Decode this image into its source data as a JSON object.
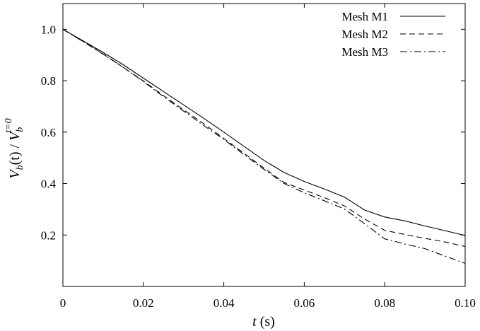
{
  "chart_data": {
    "type": "line",
    "title": "",
    "xlabel": {
      "italic": "t",
      "rest": " (s)"
    },
    "ylabel": {
      "base": "V",
      "sub": "b",
      "mid": "(t) / ",
      "base2": "V",
      "sub2": "b",
      "sup2": "t=0"
    },
    "xlim": [
      0,
      0.1
    ],
    "ylim": [
      0,
      1.1
    ],
    "x_ticks": [
      0,
      0.02,
      0.04,
      0.06,
      0.08,
      0.1
    ],
    "x_tick_labels": [
      "0",
      "0.02",
      "0.04",
      "0.06",
      "0.08",
      "0.10"
    ],
    "y_ticks": [
      0.2,
      0.4,
      0.6,
      0.8,
      1.0
    ],
    "y_tick_labels": [
      "0.2",
      "0.4",
      "0.6",
      "0.8",
      "1.0"
    ],
    "grid": false,
    "legend_position": "top-right",
    "series": [
      {
        "name": "Mesh M1",
        "dash": "solid",
        "x": [
          0,
          0.005,
          0.01,
          0.015,
          0.02,
          0.025,
          0.03,
          0.035,
          0.04,
          0.045,
          0.05,
          0.055,
          0.06,
          0.065,
          0.07,
          0.075,
          0.08,
          0.085,
          0.09,
          0.095,
          0.1
        ],
        "y": [
          1.0,
          0.955,
          0.91,
          0.862,
          0.81,
          0.758,
          0.706,
          0.654,
          0.6,
          0.545,
          0.49,
          0.443,
          0.408,
          0.379,
          0.347,
          0.297,
          0.27,
          0.255,
          0.235,
          0.217,
          0.198
        ]
      },
      {
        "name": "Mesh M2",
        "dash": "dashed",
        "x": [
          0,
          0.005,
          0.01,
          0.015,
          0.02,
          0.025,
          0.03,
          0.035,
          0.04,
          0.045,
          0.05,
          0.055,
          0.06,
          0.065,
          0.07,
          0.075,
          0.08,
          0.085,
          0.09,
          0.095,
          0.1
        ],
        "y": [
          1.0,
          0.953,
          0.904,
          0.852,
          0.799,
          0.742,
          0.687,
          0.633,
          0.575,
          0.518,
          0.46,
          0.404,
          0.375,
          0.345,
          0.313,
          0.262,
          0.218,
          0.202,
          0.187,
          0.173,
          0.155
        ]
      },
      {
        "name": "Mesh M3",
        "dash": "dashdot",
        "x": [
          0,
          0.005,
          0.01,
          0.015,
          0.02,
          0.025,
          0.03,
          0.035,
          0.04,
          0.045,
          0.05,
          0.055,
          0.06,
          0.065,
          0.07,
          0.075,
          0.08,
          0.085,
          0.09,
          0.095,
          0.1
        ],
        "y": [
          1.0,
          0.952,
          0.903,
          0.852,
          0.797,
          0.738,
          0.682,
          0.626,
          0.572,
          0.513,
          0.455,
          0.4,
          0.364,
          0.333,
          0.301,
          0.244,
          0.185,
          0.165,
          0.147,
          0.118,
          0.09
        ]
      }
    ]
  }
}
